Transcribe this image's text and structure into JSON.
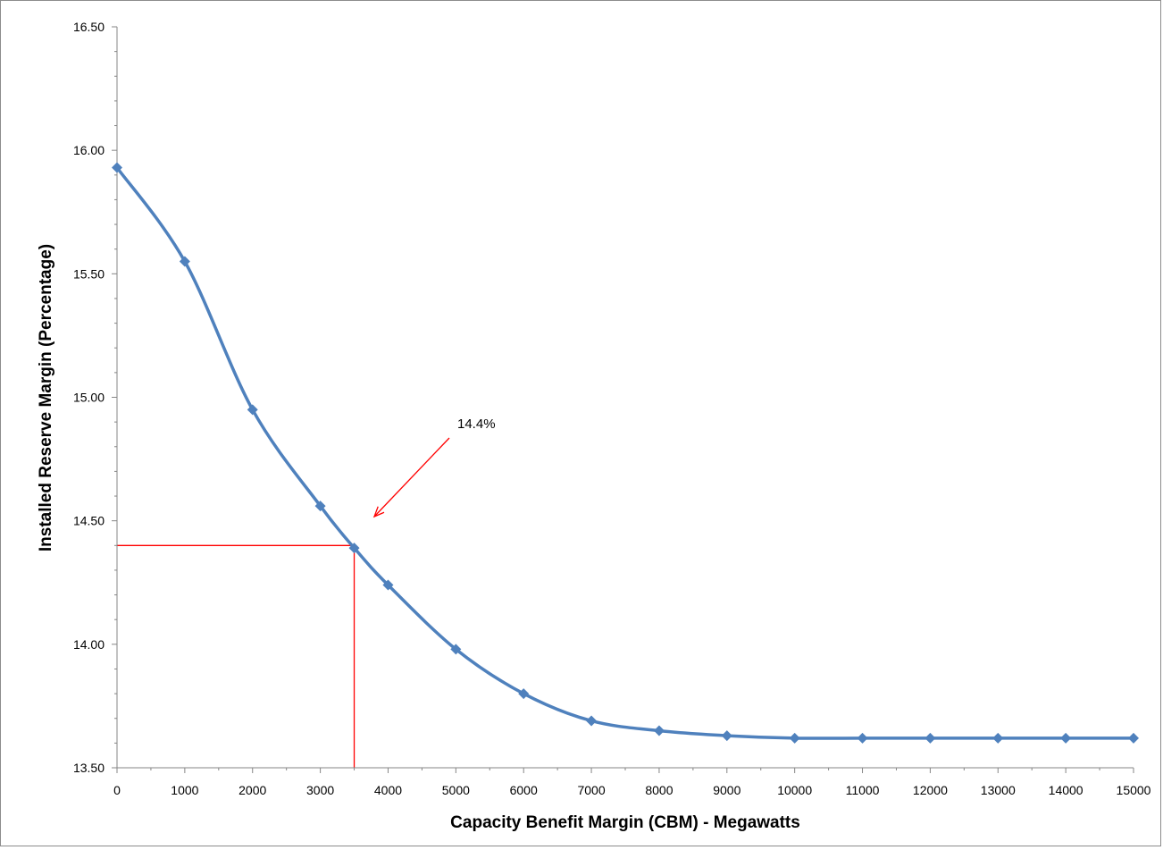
{
  "chart_data": {
    "type": "line",
    "xlabel": "Capacity Benefit Margin (CBM) - Megawatts",
    "ylabel": "Installed Reserve Margin (Percentage)",
    "xlim": [
      0,
      15000
    ],
    "ylim": [
      13.5,
      16.5
    ],
    "x_ticks": [
      "0",
      "1000",
      "2000",
      "3000",
      "4000",
      "5000",
      "6000",
      "7000",
      "8000",
      "9000",
      "10000",
      "11000",
      "12000",
      "13000",
      "14000",
      "15000"
    ],
    "y_ticks": [
      "13.50",
      "14.00",
      "14.50",
      "15.00",
      "15.50",
      "16.00",
      "16.50"
    ],
    "grid": false,
    "legend": "none",
    "series": [
      {
        "x": [
          0,
          1000,
          2000,
          3000,
          3500,
          4000,
          5000,
          6000,
          7000,
          8000,
          9000,
          10000,
          11000,
          12000,
          13000,
          14000,
          15000
        ],
        "y": [
          15.93,
          15.55,
          14.95,
          14.56,
          14.39,
          14.24,
          13.98,
          13.8,
          13.69,
          13.65,
          13.63,
          13.62,
          13.62,
          13.62,
          13.62,
          13.62,
          13.62
        ],
        "color": "#4f81bd",
        "marker": "diamond",
        "smooth": true
      }
    ],
    "reference_point": {
      "x": 3500,
      "y": 14.4,
      "color": "#ff0000"
    },
    "annotation": {
      "text": "14.4%",
      "color": "#ff0000"
    }
  }
}
